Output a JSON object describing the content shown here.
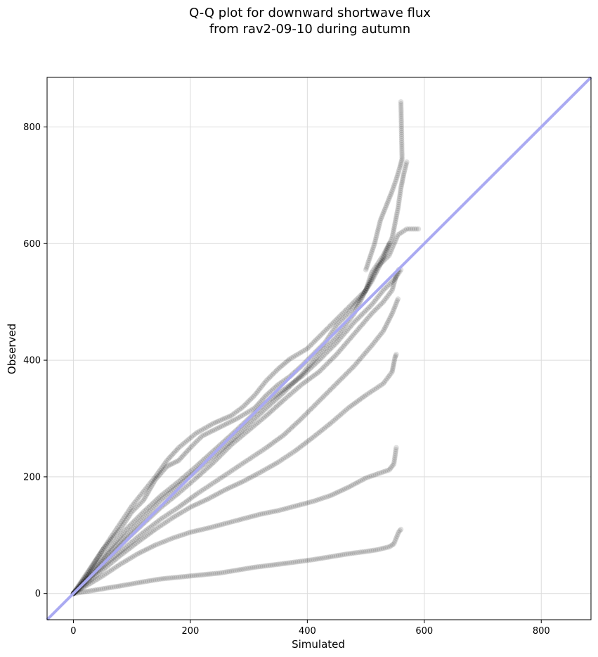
{
  "chart_data": {
    "type": "scatter",
    "title": [
      "Q-Q plot for downward shortwave flux",
      "from rav2-09-10 during autumn"
    ],
    "xlabel": "Simulated",
    "ylabel": "Observed",
    "xlim": [
      -45,
      885
    ],
    "ylim": [
      -45,
      885
    ],
    "xticks": [
      0,
      200,
      400,
      600,
      800
    ],
    "yticks": [
      0,
      200,
      400,
      600,
      800
    ],
    "grid": true,
    "reference_line": {
      "from": [
        -45,
        -45
      ],
      "to": [
        885,
        885
      ],
      "color": "#aaaaf2"
    },
    "point_color": "#000000",
    "point_alpha": 0.12,
    "series": [
      {
        "points": [
          [
            0,
            0
          ],
          [
            20,
            3
          ],
          [
            50,
            8
          ],
          [
            80,
            13
          ],
          [
            120,
            20
          ],
          [
            150,
            25
          ],
          [
            180,
            28
          ],
          [
            210,
            31
          ],
          [
            250,
            35
          ],
          [
            280,
            40
          ],
          [
            310,
            45
          ],
          [
            350,
            50
          ],
          [
            380,
            54
          ],
          [
            410,
            58
          ],
          [
            440,
            63
          ],
          [
            470,
            68
          ],
          [
            500,
            72
          ],
          [
            520,
            75
          ],
          [
            540,
            80
          ],
          [
            548,
            85
          ],
          [
            552,
            95
          ],
          [
            556,
            105
          ],
          [
            560,
            110
          ]
        ]
      },
      {
        "points": [
          [
            0,
            0
          ],
          [
            20,
            12
          ],
          [
            50,
            30
          ],
          [
            80,
            50
          ],
          [
            110,
            68
          ],
          [
            140,
            83
          ],
          [
            170,
            95
          ],
          [
            200,
            105
          ],
          [
            230,
            112
          ],
          [
            260,
            120
          ],
          [
            290,
            128
          ],
          [
            320,
            136
          ],
          [
            350,
            142
          ],
          [
            380,
            150
          ],
          [
            410,
            158
          ],
          [
            440,
            168
          ],
          [
            470,
            182
          ],
          [
            500,
            198
          ],
          [
            520,
            205
          ],
          [
            540,
            212
          ],
          [
            548,
            222
          ],
          [
            552,
            250
          ]
        ]
      },
      {
        "points": [
          [
            0,
            0
          ],
          [
            20,
            15
          ],
          [
            50,
            40
          ],
          [
            80,
            65
          ],
          [
            110,
            88
          ],
          [
            140,
            110
          ],
          [
            170,
            130
          ],
          [
            200,
            148
          ],
          [
            230,
            162
          ],
          [
            260,
            178
          ],
          [
            290,
            192
          ],
          [
            320,
            208
          ],
          [
            350,
            225
          ],
          [
            380,
            245
          ],
          [
            410,
            268
          ],
          [
            440,
            292
          ],
          [
            470,
            318
          ],
          [
            500,
            340
          ],
          [
            530,
            360
          ],
          [
            545,
            380
          ],
          [
            548,
            395
          ],
          [
            550,
            405
          ],
          [
            552,
            410
          ]
        ]
      },
      {
        "points": [
          [
            0,
            0
          ],
          [
            30,
            30
          ],
          [
            60,
            62
          ],
          [
            90,
            92
          ],
          [
            120,
            120
          ],
          [
            150,
            148
          ],
          [
            180,
            172
          ],
          [
            210,
            198
          ],
          [
            240,
            225
          ],
          [
            270,
            255
          ],
          [
            300,
            280
          ],
          [
            330,
            305
          ],
          [
            360,
            332
          ],
          [
            390,
            358
          ],
          [
            420,
            380
          ],
          [
            450,
            410
          ],
          [
            480,
            445
          ],
          [
            510,
            480
          ],
          [
            530,
            500
          ],
          [
            545,
            520
          ],
          [
            552,
            545
          ],
          [
            556,
            555
          ]
        ]
      },
      {
        "points": [
          [
            0,
            0
          ],
          [
            30,
            38
          ],
          [
            60,
            75
          ],
          [
            90,
            110
          ],
          [
            120,
            140
          ],
          [
            150,
            168
          ],
          [
            180,
            192
          ],
          [
            210,
            218
          ],
          [
            240,
            245
          ],
          [
            270,
            272
          ],
          [
            300,
            300
          ],
          [
            330,
            328
          ],
          [
            360,
            350
          ],
          [
            390,
            372
          ],
          [
            420,
            400
          ],
          [
            450,
            430
          ],
          [
            480,
            465
          ],
          [
            510,
            495
          ],
          [
            530,
            520
          ],
          [
            550,
            540
          ],
          [
            560,
            555
          ]
        ]
      },
      {
        "points": [
          [
            0,
            0
          ],
          [
            25,
            35
          ],
          [
            50,
            75
          ],
          [
            80,
            120
          ],
          [
            100,
            150
          ],
          [
            120,
            175
          ],
          [
            140,
            200
          ],
          [
            160,
            228
          ],
          [
            180,
            250
          ],
          [
            210,
            275
          ],
          [
            240,
            292
          ],
          [
            270,
            305
          ],
          [
            290,
            320
          ],
          [
            310,
            340
          ],
          [
            330,
            365
          ],
          [
            350,
            385
          ],
          [
            370,
            402
          ],
          [
            400,
            420
          ],
          [
            420,
            440
          ],
          [
            440,
            460
          ],
          [
            460,
            480
          ],
          [
            480,
            500
          ],
          [
            500,
            520
          ],
          [
            510,
            550
          ],
          [
            520,
            565
          ],
          [
            530,
            580
          ],
          [
            540,
            600
          ]
        ]
      },
      {
        "points": [
          [
            0,
            0
          ],
          [
            20,
            30
          ],
          [
            50,
            75
          ],
          [
            80,
            110
          ],
          [
            100,
            140
          ],
          [
            120,
            160
          ],
          [
            140,
            195
          ],
          [
            160,
            218
          ],
          [
            180,
            228
          ],
          [
            200,
            250
          ],
          [
            220,
            270
          ],
          [
            250,
            285
          ],
          [
            280,
            300
          ],
          [
            310,
            318
          ],
          [
            330,
            340
          ],
          [
            350,
            358
          ],
          [
            370,
            372
          ],
          [
            390,
            390
          ],
          [
            410,
            410
          ],
          [
            430,
            430
          ],
          [
            450,
            460
          ],
          [
            470,
            480
          ],
          [
            490,
            505
          ],
          [
            510,
            535
          ],
          [
            530,
            575
          ],
          [
            545,
            610
          ],
          [
            555,
            660
          ],
          [
            560,
            695
          ],
          [
            565,
            720
          ],
          [
            570,
            740
          ]
        ]
      },
      {
        "points": [
          [
            0,
            0
          ],
          [
            30,
            28
          ],
          [
            60,
            55
          ],
          [
            90,
            80
          ],
          [
            120,
            105
          ],
          [
            150,
            128
          ],
          [
            180,
            148
          ],
          [
            210,
            170
          ],
          [
            240,
            190
          ],
          [
            270,
            210
          ],
          [
            300,
            230
          ],
          [
            330,
            250
          ],
          [
            360,
            272
          ],
          [
            390,
            300
          ],
          [
            420,
            330
          ],
          [
            450,
            360
          ],
          [
            480,
            390
          ],
          [
            510,
            425
          ],
          [
            530,
            450
          ],
          [
            545,
            480
          ],
          [
            555,
            505
          ]
        ]
      },
      {
        "points": [
          [
            0,
            0
          ],
          [
            30,
            33
          ],
          [
            60,
            68
          ],
          [
            90,
            100
          ],
          [
            120,
            130
          ],
          [
            150,
            160
          ],
          [
            180,
            185
          ],
          [
            210,
            210
          ],
          [
            240,
            235
          ],
          [
            270,
            262
          ],
          [
            300,
            290
          ],
          [
            330,
            318
          ],
          [
            360,
            345
          ],
          [
            390,
            375
          ],
          [
            420,
            410
          ],
          [
            450,
            440
          ],
          [
            480,
            480
          ],
          [
            500,
            520
          ],
          [
            520,
            560
          ],
          [
            540,
            580
          ],
          [
            555,
            615
          ],
          [
            570,
            625
          ],
          [
            590,
            625
          ]
        ]
      },
      {
        "points": [
          [
            500,
            555
          ],
          [
            515,
            600
          ],
          [
            525,
            640
          ],
          [
            535,
            665
          ],
          [
            545,
            690
          ],
          [
            552,
            710
          ],
          [
            558,
            730
          ],
          [
            562,
            745
          ],
          [
            560,
            843
          ]
        ]
      }
    ]
  }
}
